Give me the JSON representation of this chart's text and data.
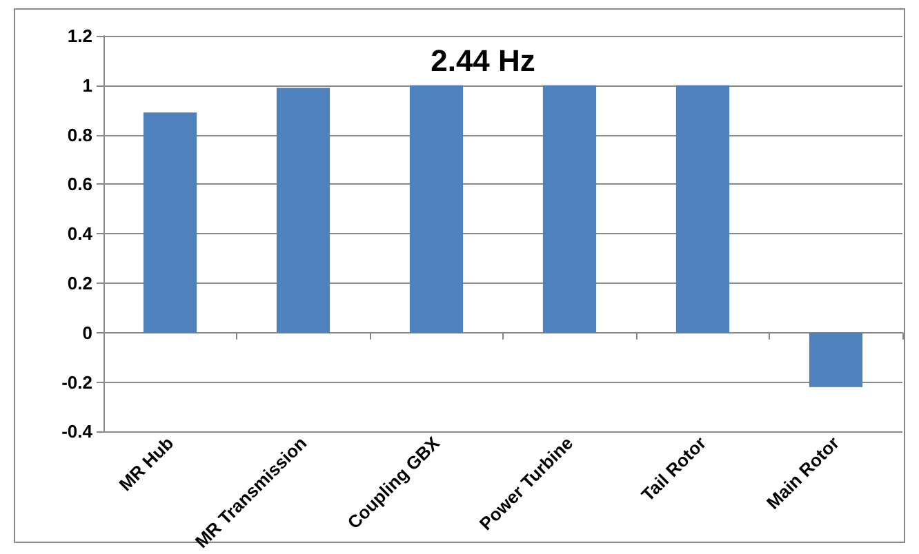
{
  "chart_data": {
    "type": "bar",
    "title": "2.44 Hz",
    "categories": [
      "MR Hub",
      "MR Transmission",
      "Coupling GBX",
      "Power Turbine",
      "Tail Rotor",
      "Main Rotor"
    ],
    "values": [
      0.89,
      0.99,
      1,
      1,
      1,
      -0.22
    ],
    "color": "#4f81bd",
    "ylim": [
      -0.4,
      1.2
    ],
    "yticks": [
      -0.4,
      -0.2,
      0,
      0.2,
      0.4,
      0.6,
      0.8,
      1,
      1.2
    ],
    "grid": "y"
  }
}
